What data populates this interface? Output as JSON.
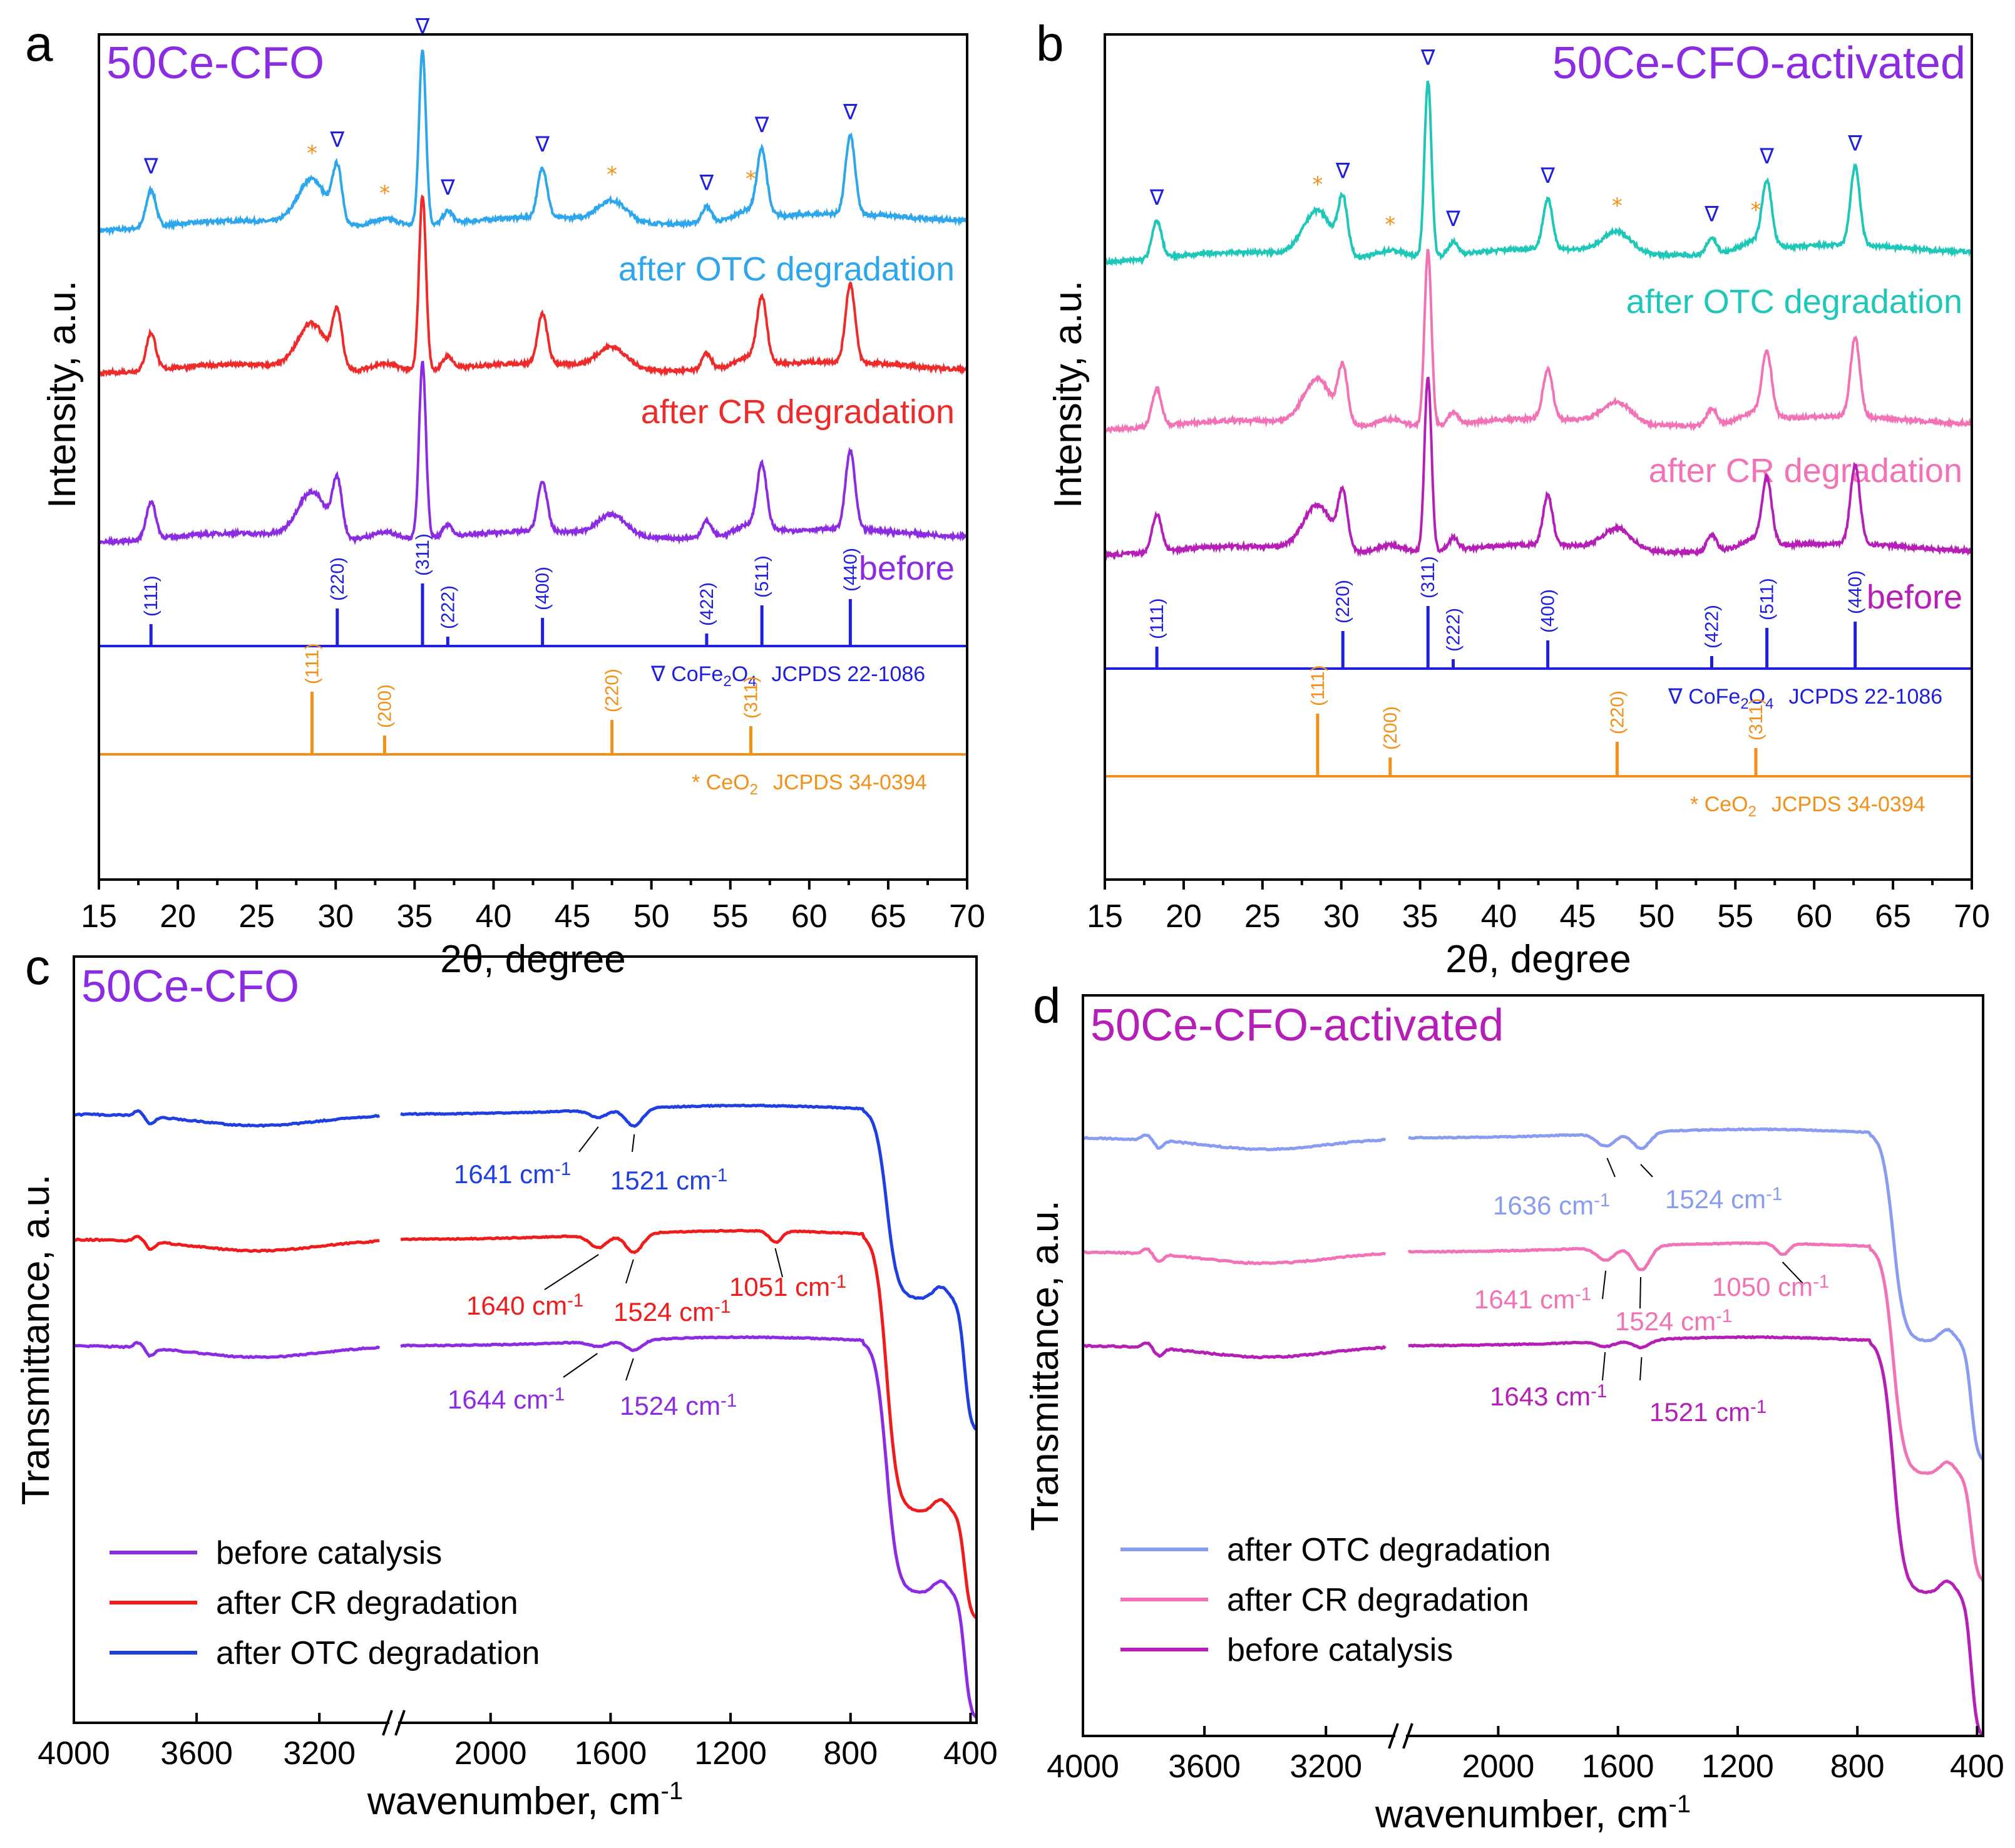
{
  "chart_data": [
    {
      "panel": "a",
      "type": "line",
      "title": "50Ce-CFO",
      "xlabel": "2θ, degree",
      "ylabel": "Intensity, a.u.",
      "xlim": [
        15,
        70
      ],
      "xticks": [
        15,
        20,
        25,
        30,
        35,
        40,
        45,
        50,
        55,
        60,
        65,
        70
      ],
      "series": [
        {
          "name": "after OTC degradation",
          "color": "#2ea6ec"
        },
        {
          "name": "after CR degradation",
          "color": "#ee2b2b"
        },
        {
          "name": "before",
          "color": "#8b2be2"
        }
      ],
      "peaks_spinel": [
        18.3,
        30.1,
        35.5,
        37.1,
        43.1,
        53.5,
        57.0,
        62.6
      ],
      "peaks_ceria": [
        28.5,
        33.1,
        47.5,
        56.3
      ],
      "reference_cofe2o4": {
        "label": "CoFe",
        "sub1": "2",
        "label_mid": "O",
        "sub2": "4",
        "card": "JCPDS 22-1086",
        "marker": "∇",
        "lines": [
          {
            "x": 18.3,
            "h": 0.35,
            "hkl": "(111)"
          },
          {
            "x": 30.1,
            "h": 0.6,
            "hkl": "(220)"
          },
          {
            "x": 35.5,
            "h": 1.0,
            "hkl": "(311)"
          },
          {
            "x": 37.1,
            "h": 0.15,
            "hkl": "(222)"
          },
          {
            "x": 43.1,
            "h": 0.45,
            "hkl": "(400)"
          },
          {
            "x": 53.5,
            "h": 0.2,
            "hkl": "(422)"
          },
          {
            "x": 57.0,
            "h": 0.65,
            "hkl": "(511)"
          },
          {
            "x": 62.6,
            "h": 0.75,
            "hkl": "(440)"
          }
        ]
      },
      "reference_ceo2": {
        "label": "CeO",
        "sub1": "2",
        "card": "JCPDS 34-0394",
        "marker": "*",
        "lines": [
          {
            "x": 28.5,
            "h": 1.0,
            "hkl": "(111)"
          },
          {
            "x": 33.1,
            "h": 0.3,
            "hkl": "(200)"
          },
          {
            "x": 47.5,
            "h": 0.55,
            "hkl": "(220)"
          },
          {
            "x": 56.3,
            "h": 0.45,
            "hkl": "(311)"
          }
        ]
      }
    },
    {
      "panel": "b",
      "type": "line",
      "title": "50Ce-CFO-activated",
      "xlabel": "2θ, degree",
      "ylabel": "Intensity, a.u.",
      "xlim": [
        15,
        70
      ],
      "xticks": [
        15,
        20,
        25,
        30,
        35,
        40,
        45,
        50,
        55,
        60,
        65,
        70
      ],
      "series": [
        {
          "name": "after OTC degradation",
          "color": "#1fc7b8"
        },
        {
          "name": "after CR degradation",
          "color": "#f272b6"
        },
        {
          "name": "before",
          "color": "#b51fb5"
        }
      ],
      "peaks_spinel": [
        18.3,
        30.1,
        35.5,
        37.1,
        43.1,
        53.5,
        57.0,
        62.6
      ],
      "peaks_ceria": [
        28.5,
        33.1,
        47.5,
        56.3
      ],
      "reference_cofe2o4": {
        "label": "CoFe",
        "sub1": "2",
        "label_mid": "O",
        "sub2": "4",
        "card": "JCPDS 22-1086",
        "marker": "∇",
        "lines": [
          {
            "x": 18.3,
            "h": 0.35,
            "hkl": "(111)"
          },
          {
            "x": 30.1,
            "h": 0.6,
            "hkl": "(220)"
          },
          {
            "x": 35.5,
            "h": 1.0,
            "hkl": "(311)"
          },
          {
            "x": 37.1,
            "h": 0.15,
            "hkl": "(222)"
          },
          {
            "x": 43.1,
            "h": 0.45,
            "hkl": "(400)"
          },
          {
            "x": 53.5,
            "h": 0.2,
            "hkl": "(422)"
          },
          {
            "x": 57.0,
            "h": 0.65,
            "hkl": "(511)"
          },
          {
            "x": 62.6,
            "h": 0.75,
            "hkl": "(440)"
          }
        ]
      },
      "reference_ceo2": {
        "label": "CeO",
        "sub1": "2",
        "card": "JCPDS 34-0394",
        "marker": "*",
        "lines": [
          {
            "x": 28.5,
            "h": 1.0,
            "hkl": "(111)"
          },
          {
            "x": 33.1,
            "h": 0.3,
            "hkl": "(200)"
          },
          {
            "x": 47.5,
            "h": 0.55,
            "hkl": "(220)"
          },
          {
            "x": 56.3,
            "h": 0.45,
            "hkl": "(311)"
          }
        ]
      }
    },
    {
      "panel": "c",
      "type": "line",
      "title": "50Ce-CFO",
      "xlabel": "wavenumber, cm",
      "xlabel_sup": "-1",
      "ylabel": "Transmittance, a.u.",
      "xticks_left": [
        "4000",
        "3600",
        "3200"
      ],
      "xticks_right": [
        "2000",
        "1600",
        "1200",
        "800",
        "400"
      ],
      "legend": [
        "before catalysis",
        "after CR degradation",
        "after OTC degradation"
      ],
      "series": [
        {
          "name": "after OTC degradation",
          "color": "#1f3fe0",
          "annotations": [
            {
              "label": "1641 cm",
              "sup": "-1",
              "x": 1641
            },
            {
              "label": "1521 cm",
              "sup": "-1",
              "x": 1521
            }
          ]
        },
        {
          "name": "after CR degradation",
          "color": "#ee1c1c",
          "annotations": [
            {
              "label": "1640 cm",
              "sup": "-1",
              "x": 1640
            },
            {
              "label": "1524 cm",
              "sup": "-1",
              "x": 1524
            },
            {
              "label": "1051 cm",
              "sup": "-1",
              "x": 1051
            }
          ]
        },
        {
          "name": "before catalysis",
          "color": "#8b2be2",
          "annotations": [
            {
              "label": "1644 cm",
              "sup": "-1",
              "x": 1644
            },
            {
              "label": "1524 cm",
              "sup": "-1",
              "x": 1524
            }
          ]
        }
      ]
    },
    {
      "panel": "d",
      "type": "line",
      "title": "50Ce-CFO-activated",
      "xlabel": "wavenumber, cm",
      "xlabel_sup": "-1",
      "ylabel": "Transmittance, a.u.",
      "xticks_left": [
        "4000",
        "3600",
        "3200"
      ],
      "xticks_right": [
        "2000",
        "1600",
        "1200",
        "800",
        "400"
      ],
      "legend": [
        "after OTC degradation",
        "after CR degradation",
        "before catalysis"
      ],
      "series": [
        {
          "name": "after OTC degradation",
          "color": "#8a9cf0",
          "annotations": [
            {
              "label": "1636 cm",
              "sup": "-1",
              "x": 1636
            },
            {
              "label": "1524 cm",
              "sup": "-1",
              "x": 1524
            }
          ]
        },
        {
          "name": "after CR degradation",
          "color": "#f272b6",
          "annotations": [
            {
              "label": "1641 cm",
              "sup": "-1",
              "x": 1641
            },
            {
              "label": "1524 cm",
              "sup": "-1",
              "x": 1524
            },
            {
              "label": "1050 cm",
              "sup": "-1",
              "x": 1050
            }
          ]
        },
        {
          "name": "before catalysis",
          "color": "#b51fb5",
          "annotations": [
            {
              "label": "1643 cm",
              "sup": "-1",
              "x": 1643
            },
            {
              "label": "1521 cm",
              "sup": "-1",
              "x": 1521
            }
          ]
        }
      ]
    }
  ],
  "colors": {
    "spinel_ref": "#1f1fdd",
    "ceria_ref": "#f39019",
    "title_a": "#8b2be2",
    "title_b": "#8b2be2",
    "title_c": "#8b2be2",
    "title_d": "#b51fb5"
  }
}
